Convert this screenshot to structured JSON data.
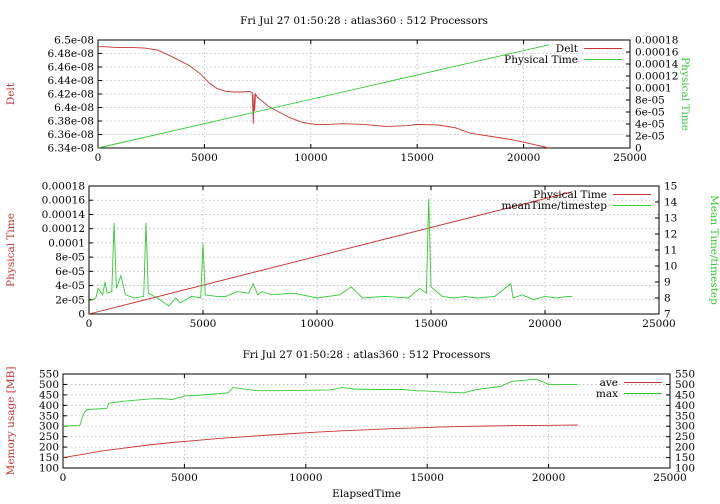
{
  "chart_data": [
    {
      "id": "panel1",
      "type": "line",
      "title": "Fri Jul 27 01:50:28 : atlas360 : 512 Processors",
      "xlabel": "",
      "ylabel": "Delt",
      "y2label": "Physical Time",
      "xlim": [
        0,
        25000
      ],
      "ylim": [
        6.34e-08,
        6.5e-08
      ],
      "y2lim": [
        0,
        0.00018
      ],
      "x_ticks": [
        "0",
        "5000",
        "10000",
        "15000",
        "20000",
        "25000"
      ],
      "y_ticks": [
        "6.34e-08",
        "6.36e-08",
        "6.38e-08",
        "6.4e-08",
        "6.42e-08",
        "6.44e-08",
        "6.46e-08",
        "6.48e-08",
        "6.5e-08"
      ],
      "y2_ticks": [
        "0",
        "2e-05",
        "4e-05",
        "6e-05",
        "8e-05",
        "0.0001",
        "0.00012",
        "0.00014",
        "0.00016",
        "0.00018"
      ],
      "grid": true,
      "legend_position": "top-right",
      "series": [
        {
          "name": "Delt",
          "axis": "left",
          "color": "#cc3333",
          "x": [
            0,
            300,
            800,
            1500,
            2200,
            2800,
            3300,
            3800,
            4300,
            4800,
            5200,
            5600,
            6000,
            6400,
            6800,
            7100,
            7250,
            7300,
            7330,
            7360,
            7400,
            7500,
            7700,
            8000,
            8400,
            9000,
            9600,
            10200,
            10800,
            11500,
            12500,
            13500,
            14500,
            15000,
            16000,
            16800,
            17500,
            18500,
            19500,
            20500,
            21200
          ],
          "y": [
            6.49e-08,
            6.49e-08,
            6.489e-08,
            6.489e-08,
            6.488e-08,
            6.485e-08,
            6.478e-08,
            6.47e-08,
            6.462e-08,
            6.45e-08,
            6.437e-08,
            6.428e-08,
            6.424e-08,
            6.423e-08,
            6.423e-08,
            6.424e-08,
            6.422e-08,
            6.376e-08,
            6.42e-08,
            6.395e-08,
            6.42e-08,
            6.415e-08,
            6.41e-08,
            6.402e-08,
            6.395e-08,
            6.385e-08,
            6.378e-08,
            6.375e-08,
            6.375e-08,
            6.376e-08,
            6.375e-08,
            6.372e-08,
            6.373e-08,
            6.375e-08,
            6.374e-08,
            6.37e-08,
            6.362e-08,
            6.357e-08,
            6.352e-08,
            6.345e-08,
            6.34e-08
          ]
        },
        {
          "name": "Physical Time",
          "axis": "right",
          "color": "#33cc33",
          "x": [
            0,
            21200
          ],
          "y": [
            0,
            0.000172
          ]
        }
      ]
    },
    {
      "id": "panel2",
      "type": "line",
      "title": "",
      "xlabel": "",
      "ylabel": "Physical Time",
      "y2label": "Mean Time/timestep",
      "xlim": [
        0,
        25000
      ],
      "ylim": [
        0,
        0.00018
      ],
      "y2lim": [
        7,
        15
      ],
      "x_ticks": [
        "0",
        "5000",
        "10000",
        "15000",
        "20000",
        "25000"
      ],
      "y_ticks": [
        "0",
        "2e-05",
        "4e-05",
        "6e-05",
        "8e-05",
        "0.0001",
        "0.00012",
        "0.00014",
        "0.00016",
        "0.00018"
      ],
      "y2_ticks": [
        "7",
        "8",
        "9",
        "10",
        "11",
        "12",
        "13",
        "14",
        "15"
      ],
      "grid": true,
      "legend_position": "top-right",
      "series": [
        {
          "name": "Physical Time",
          "axis": "left",
          "color": "#cc3333",
          "x": [
            0,
            21200
          ],
          "y": [
            0,
            0.000172
          ]
        },
        {
          "name": "meanTime/timestep",
          "axis": "right",
          "color": "#33cc33",
          "x": [
            0,
            300,
            400,
            600,
            700,
            800,
            1000,
            1100,
            1200,
            1400,
            1600,
            2000,
            2400,
            2500,
            2600,
            3000,
            3500,
            3800,
            4000,
            4500,
            4900,
            5000,
            5100,
            5600,
            6000,
            6500,
            7000,
            7200,
            7400,
            7600,
            8000,
            9000,
            10000,
            11000,
            11500,
            12000,
            13000,
            14000,
            14500,
            14800,
            14900,
            15000,
            15500,
            16000,
            16500,
            17000,
            17800,
            18500,
            18600,
            19000,
            19500,
            20000,
            20500,
            21000,
            21200
          ],
          "y": [
            7.8,
            8.0,
            8.6,
            8.2,
            9.0,
            8.3,
            8.4,
            12.7,
            8.6,
            9.4,
            8.2,
            8.0,
            8.1,
            12.7,
            8.3,
            8.0,
            7.5,
            8.0,
            7.7,
            8.1,
            8.0,
            11.4,
            8.2,
            8.1,
            8.1,
            8.4,
            8.3,
            8.9,
            8.2,
            8.4,
            8.2,
            8.3,
            8.0,
            8.2,
            8.7,
            8.0,
            8.1,
            8.0,
            8.6,
            8.3,
            14.2,
            8.7,
            8.1,
            8.0,
            8.1,
            8.0,
            8.1,
            8.9,
            8.0,
            8.2,
            7.9,
            8.1,
            8.0,
            8.1,
            8.1
          ]
        }
      ]
    },
    {
      "id": "panel3",
      "type": "line",
      "title": "Fri Jul 27 01:50:28 : atlas360 : 512 Processors",
      "xlabel": "ElapsedTime",
      "ylabel": "Memory usage [MB]",
      "y2label": "",
      "xlim": [
        0,
        25000
      ],
      "ylim": [
        100,
        550
      ],
      "y2lim": [
        100,
        550
      ],
      "x_ticks": [
        "0",
        "5000",
        "10000",
        "15000",
        "20000",
        "25000"
      ],
      "y_ticks": [
        "100",
        "150",
        "200",
        "250",
        "300",
        "350",
        "400",
        "450",
        "500",
        "550"
      ],
      "y2_ticks": [
        "100",
        "150",
        "200",
        "250",
        "300",
        "350",
        "400",
        "450",
        "500",
        "550"
      ],
      "grid": true,
      "legend_position": "top-right",
      "series": [
        {
          "name": "ave",
          "axis": "left",
          "color": "#cc3333",
          "x": [
            0,
            800,
            1500,
            2500,
            3500,
            4500,
            5500,
            6500,
            7500,
            8500,
            9500,
            10500,
            11500,
            12500,
            13500,
            14500,
            15500,
            16500,
            17500,
            18500,
            19500,
            20500,
            21200
          ],
          "y": [
            150,
            165,
            180,
            195,
            210,
            222,
            232,
            242,
            250,
            258,
            265,
            272,
            278,
            283,
            288,
            292,
            296,
            299,
            301,
            303,
            304,
            305,
            306
          ]
        },
        {
          "name": "max",
          "axis": "left",
          "color": "#33cc33",
          "x": [
            0,
            700,
            800,
            900,
            1000,
            1800,
            1900,
            2500,
            3500,
            4000,
            4500,
            5000,
            5500,
            6000,
            6800,
            7000,
            8000,
            9000,
            10000,
            11000,
            11500,
            12000,
            13000,
            14000,
            14500,
            15000,
            15500,
            16500,
            17000,
            18000,
            18500,
            19000,
            19500,
            20000,
            20500,
            21200
          ],
          "y": [
            300,
            305,
            345,
            370,
            380,
            385,
            410,
            420,
            430,
            432,
            428,
            445,
            448,
            452,
            460,
            485,
            470,
            470,
            472,
            474,
            485,
            478,
            476,
            476,
            470,
            468,
            465,
            460,
            475,
            490,
            515,
            520,
            525,
            500,
            500,
            500
          ]
        }
      ]
    }
  ]
}
